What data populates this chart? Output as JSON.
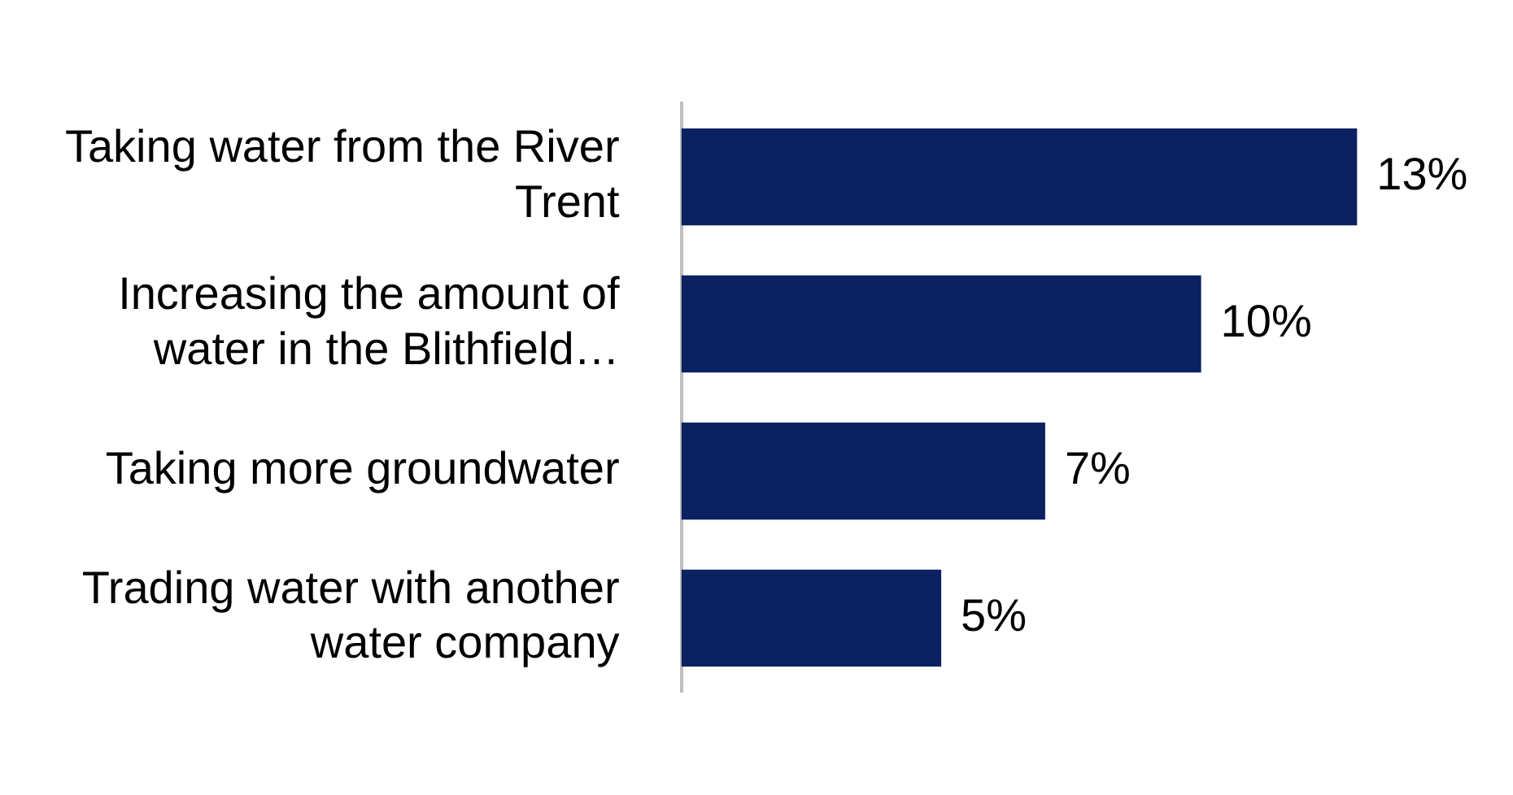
{
  "chart_data": {
    "type": "bar",
    "orientation": "horizontal",
    "categories": [
      "Taking water from the River Trent",
      "Increasing the amount of water in the Blithfield…",
      "Taking more groundwater",
      "Trading water with another water company"
    ],
    "values": [
      13,
      10,
      7,
      5
    ],
    "color": "#0b2161",
    "data_labels": true,
    "value_labels": [
      "13%",
      "10%",
      "7%",
      "5%"
    ],
    "xlim": [
      0,
      16
    ],
    "tick_labels": "y",
    "legend": false
  }
}
